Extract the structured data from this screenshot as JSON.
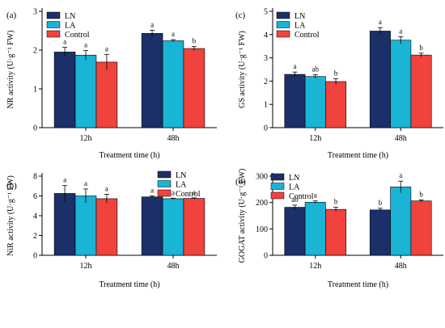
{
  "chart_data": [
    {
      "type": "bar",
      "panel": "(a)",
      "categories": [
        "12h",
        "48h"
      ],
      "series": [
        {
          "name": "LN",
          "values": [
            1.95,
            2.43
          ],
          "errors": [
            0.12,
            0.08
          ],
          "labels": [
            "a",
            "a"
          ]
        },
        {
          "name": "LA",
          "values": [
            1.87,
            2.24
          ],
          "errors": [
            0.12,
            0.03
          ],
          "labels": [
            "a",
            "a"
          ]
        },
        {
          "name": "Control",
          "values": [
            1.69,
            2.04
          ],
          "errors": [
            0.2,
            0.05
          ],
          "labels": [
            "a",
            "b"
          ]
        }
      ],
      "xlabel": "Treatment time (h)",
      "ylabel": "NR activity (U·g⁻¹ FW)",
      "ylim": [
        0,
        3
      ],
      "yticks": [
        "0",
        "1",
        "2",
        "3"
      ],
      "legend": "top-left"
    },
    {
      "type": "bar",
      "panel": "(c)",
      "categories": [
        "12h",
        "48h"
      ],
      "series": [
        {
          "name": "LN",
          "values": [
            2.29,
            4.15
          ],
          "errors": [
            0.1,
            0.15
          ],
          "labels": [
            "a",
            "a"
          ]
        },
        {
          "name": "LA",
          "values": [
            2.2,
            3.76
          ],
          "errors": [
            0.08,
            0.15
          ],
          "labels": [
            "ab",
            "a"
          ]
        },
        {
          "name": "Control",
          "values": [
            1.98,
            3.12
          ],
          "errors": [
            0.12,
            0.08
          ],
          "labels": [
            "b",
            "b"
          ]
        }
      ],
      "xlabel": "Treatment time (h)",
      "ylabel": "GS activity (U·g⁻¹ FW)",
      "ylim": [
        0,
        5
      ],
      "yticks": [
        "0",
        "1",
        "2",
        "3",
        "4",
        "5"
      ],
      "legend": "top-left"
    },
    {
      "type": "bar",
      "panel": "(b)",
      "categories": [
        "12h",
        "48h"
      ],
      "series": [
        {
          "name": "LN",
          "values": [
            6.25,
            5.9
          ],
          "errors": [
            0.8,
            0.1
          ],
          "labels": [
            "a",
            "a"
          ]
        },
        {
          "name": "LA",
          "values": [
            6.0,
            5.72
          ],
          "errors": [
            0.7,
            0.05
          ],
          "labels": [
            "a",
            "a"
          ]
        },
        {
          "name": "Control",
          "values": [
            5.72,
            5.75
          ],
          "errors": [
            0.45,
            0.05
          ],
          "labels": [
            "a",
            "a"
          ]
        }
      ],
      "xlabel": "Treatment time (h)",
      "ylabel": "NiR activity (U·g⁻¹ FW)",
      "ylim": [
        0,
        8
      ],
      "yticks": [
        "0",
        "2",
        "4",
        "6",
        "8"
      ],
      "legend": "top-right"
    },
    {
      "type": "bar",
      "panel": "(d)",
      "categories": [
        "12h",
        "48h"
      ],
      "series": [
        {
          "name": "LN",
          "values": [
            182,
            172
          ],
          "errors": [
            8,
            6
          ],
          "labels": [
            "ab",
            "b"
          ]
        },
        {
          "name": "LA",
          "values": [
            201,
            259
          ],
          "errors": [
            5,
            22
          ],
          "labels": [
            "a",
            "a"
          ]
        },
        {
          "name": "Control",
          "values": [
            174,
            206
          ],
          "errors": [
            8,
            4
          ],
          "labels": [
            "b",
            "b"
          ]
        }
      ],
      "xlabel": "Treatment time (h)",
      "ylabel": "GOGAT activity (U·g⁻¹ FW)",
      "ylim": [
        0,
        300
      ],
      "yticks": [
        "0",
        "100",
        "200",
        "300"
      ],
      "legend": "top-left"
    }
  ],
  "colors": {
    "LN": "#1b3068",
    "LA": "#19b4d6",
    "Control": "#f0433e"
  }
}
